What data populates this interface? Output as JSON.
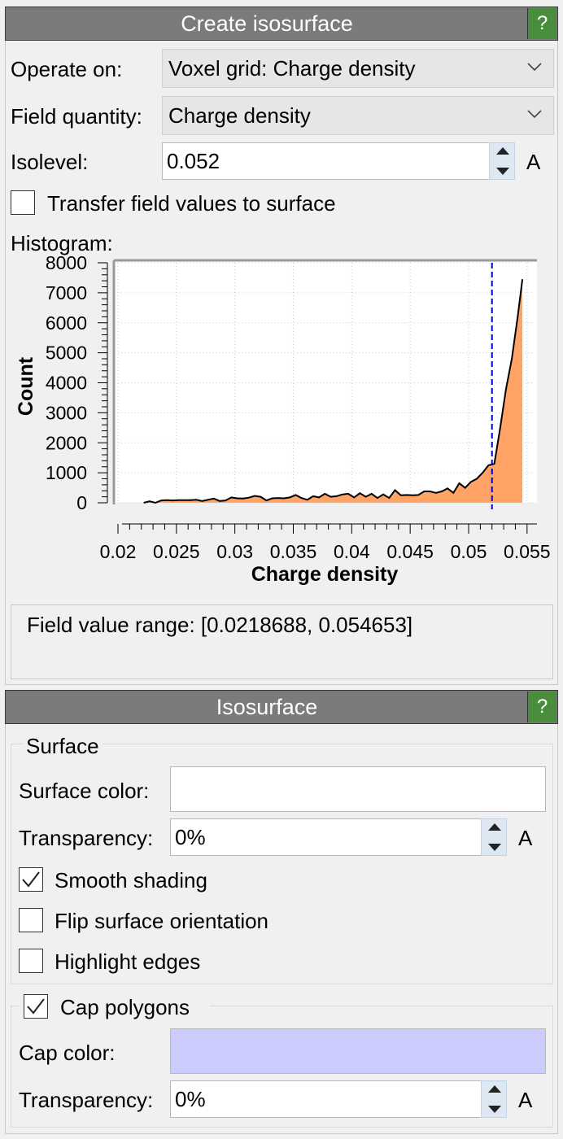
{
  "create_panel": {
    "title": "Create isosurface",
    "help": "?",
    "operate_on_label": "Operate on:",
    "operate_on_value": "Voxel grid: Charge density",
    "field_quantity_label": "Field quantity:",
    "field_quantity_value": "Charge density",
    "isolevel_label": "Isolevel:",
    "isolevel_value": "0.052",
    "isolevel_suffix": "A",
    "transfer_label": "Transfer field values to surface",
    "transfer_checked": false,
    "histogram_label": "Histogram:",
    "field_range_text": "Field value range: [0.0218688, 0.054653]"
  },
  "chart_data": {
    "type": "area",
    "xlabel": "Charge density",
    "ylabel": "Count",
    "xlim": [
      0.02,
      0.0555
    ],
    "ylim": [
      0,
      8000
    ],
    "x_ticks": [
      "0.02",
      "0.025",
      "0.03",
      "0.035",
      "0.04",
      "0.045",
      "0.05",
      "0.055"
    ],
    "x_tick_values": [
      0.02,
      0.025,
      0.03,
      0.035,
      0.04,
      0.045,
      0.05,
      0.055
    ],
    "y_ticks": [
      "0",
      "1000",
      "2000",
      "3000",
      "4000",
      "5000",
      "6000",
      "7000",
      "8000"
    ],
    "y_tick_values": [
      0,
      1000,
      2000,
      3000,
      4000,
      5000,
      6000,
      7000,
      8000
    ],
    "grid": true,
    "isolevel_line": 0.052,
    "fill_color": "#ffa366",
    "line_color": "#000000",
    "isolevel_color": "#0000cc",
    "x": [
      0.0222,
      0.0227,
      0.0232,
      0.0237,
      0.0242,
      0.0247,
      0.0252,
      0.0257,
      0.0262,
      0.0267,
      0.0272,
      0.0277,
      0.0282,
      0.0287,
      0.0292,
      0.0297,
      0.0302,
      0.0307,
      0.0312,
      0.0317,
      0.0322,
      0.0327,
      0.0332,
      0.0337,
      0.0342,
      0.0347,
      0.0352,
      0.0357,
      0.0362,
      0.0367,
      0.0372,
      0.0377,
      0.0382,
      0.0387,
      0.0392,
      0.0397,
      0.0402,
      0.0407,
      0.0412,
      0.0417,
      0.0422,
      0.0427,
      0.0432,
      0.0437,
      0.0442,
      0.0447,
      0.0452,
      0.0457,
      0.0462,
      0.0467,
      0.0472,
      0.0477,
      0.0482,
      0.0487,
      0.0492,
      0.0497,
      0.0502,
      0.0507,
      0.0512,
      0.0517,
      0.0522,
      0.0527,
      0.0532,
      0.0537,
      0.0542,
      0.0546
    ],
    "values": [
      0,
      50,
      0,
      80,
      90,
      80,
      90,
      90,
      90,
      100,
      60,
      100,
      140,
      60,
      80,
      180,
      150,
      140,
      170,
      230,
      200,
      80,
      150,
      160,
      150,
      180,
      260,
      160,
      100,
      220,
      180,
      300,
      200,
      220,
      280,
      300,
      180,
      320,
      200,
      300,
      160,
      280,
      160,
      420,
      250,
      260,
      250,
      260,
      380,
      380,
      330,
      380,
      480,
      330,
      650,
      500,
      700,
      800,
      1000,
      1250,
      1300,
      2500,
      3800,
      4800,
      6200,
      7450
    ]
  },
  "isosurface_panel": {
    "title": "Isosurface",
    "help": "?",
    "surface_group": "Surface",
    "surface_color_label": "Surface color:",
    "surface_color": "#ffffff",
    "transparency_label": "Transparency:",
    "transparency_value": "0%",
    "transparency_suffix": "A",
    "smooth_shading_label": "Smooth shading",
    "smooth_shading_checked": true,
    "flip_label": "Flip surface orientation",
    "flip_checked": false,
    "highlight_label": "Highlight edges",
    "highlight_checked": false,
    "cap_polygons_label": "Cap polygons",
    "cap_polygons_checked": true,
    "cap_color_label": "Cap color:",
    "cap_color": "#ccccff",
    "cap_transparency_label": "Transparency:",
    "cap_transparency_value": "0%",
    "cap_transparency_suffix": "A"
  }
}
